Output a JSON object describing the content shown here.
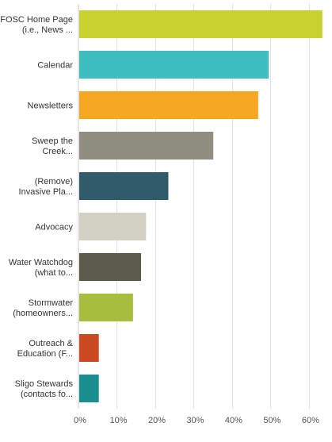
{
  "chart_data": {
    "type": "bar",
    "orientation": "horizontal",
    "title": "",
    "xlabel": "",
    "ylabel": "",
    "categories": [
      [
        "FOSC Home Page",
        "(i.e., News ..."
      ],
      [
        "Calendar"
      ],
      [
        "Newsletters"
      ],
      [
        "Sweep the",
        "Creek..."
      ],
      [
        "(Remove)",
        "Invasive Pla..."
      ],
      [
        "Advocacy"
      ],
      [
        "Water Watchdog",
        "(what to..."
      ],
      [
        "Stormwater",
        "(homeowners..."
      ],
      [
        "Outreach &",
        "Education (F..."
      ],
      [
        "Sligo Stewards",
        "(contacts fo..."
      ]
    ],
    "values": [
      63.5,
      49.5,
      46.8,
      35.1,
      23.4,
      17.6,
      16.3,
      14.2,
      5.3,
      5.3
    ],
    "colors": [
      "#c9d12f",
      "#3ebfbf",
      "#f7a823",
      "#8f8e80",
      "#2f5b6b",
      "#d3d1c4",
      "#5c5a4a",
      "#a7bd3d",
      "#cc4a22",
      "#1a8f8f"
    ],
    "xlim": [
      0,
      66
    ],
    "ticks": [
      0,
      10,
      20,
      30,
      40,
      50,
      60
    ],
    "tick_labels": [
      "0%",
      "10%",
      "20%",
      "30%",
      "40%",
      "50%",
      "60%"
    ],
    "grid": true
  }
}
